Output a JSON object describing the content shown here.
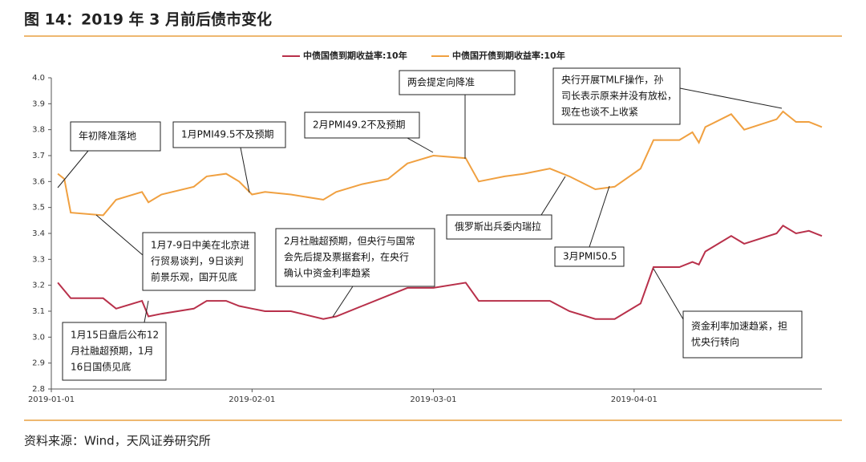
{
  "chart_data": {
    "type": "line",
    "title": "图 14：2019 年 3 月前后债市变化",
    "source": "资料来源：Wind，天风证券研究所",
    "legend": "top",
    "x": [
      "2019-01-02",
      "2019-01-03",
      "2019-01-04",
      "2019-01-09",
      "2019-01-11",
      "2019-01-15",
      "2019-01-16",
      "2019-01-18",
      "2019-01-23",
      "2019-01-25",
      "2019-01-28",
      "2019-01-30",
      "2019-02-01",
      "2019-02-03",
      "2019-02-07",
      "2019-02-12",
      "2019-02-14",
      "2019-02-18",
      "2019-02-22",
      "2019-02-25",
      "2019-03-01",
      "2019-03-06",
      "2019-03-08",
      "2019-03-12",
      "2019-03-15",
      "2019-03-19",
      "2019-03-22",
      "2019-03-26",
      "2019-03-29",
      "2019-04-02",
      "2019-04-04",
      "2019-04-08",
      "2019-04-10",
      "2019-04-11",
      "2019-04-12",
      "2019-04-16",
      "2019-04-18",
      "2019-04-23",
      "2019-04-24",
      "2019-04-26",
      "2019-04-28",
      "2019-04-30"
    ],
    "series": [
      {
        "name": "中债国债到期收益率:10年",
        "color": "#b8304a",
        "values": [
          3.21,
          3.18,
          3.15,
          3.15,
          3.11,
          3.14,
          3.08,
          3.09,
          3.11,
          3.14,
          3.14,
          3.12,
          3.11,
          3.1,
          3.1,
          3.07,
          3.08,
          3.12,
          3.16,
          3.19,
          3.19,
          3.21,
          3.14,
          3.14,
          3.14,
          3.14,
          3.1,
          3.07,
          3.07,
          3.13,
          3.27,
          3.27,
          3.29,
          3.28,
          3.33,
          3.39,
          3.36,
          3.4,
          3.43,
          3.4,
          3.41,
          3.39
        ]
      },
      {
        "name": "中债国开债到期收益率:10年",
        "color": "#f0a040",
        "values": [
          3.63,
          3.61,
          3.48,
          3.47,
          3.53,
          3.56,
          3.52,
          3.55,
          3.58,
          3.62,
          3.63,
          3.6,
          3.55,
          3.56,
          3.55,
          3.53,
          3.56,
          3.59,
          3.61,
          3.67,
          3.7,
          3.69,
          3.6,
          3.62,
          3.63,
          3.65,
          3.62,
          3.57,
          3.58,
          3.65,
          3.76,
          3.76,
          3.79,
          3.75,
          3.81,
          3.86,
          3.8,
          3.84,
          3.87,
          3.83,
          3.83,
          3.81
        ]
      }
    ],
    "xlim": [
      "2019-01-01",
      "2019-04-30"
    ],
    "xticks": [
      "2019-01-01",
      "2019-02-01",
      "2019-03-01",
      "2019-04-01"
    ],
    "ylim": [
      2.8,
      4.0
    ],
    "yticks": [
      2.8,
      2.9,
      {
        "value": 3.0,
        "label": "3.0"
      },
      3.1,
      3.2,
      3.3,
      3.4,
      3.5,
      3.6,
      3.7,
      3.8,
      3.9,
      {
        "value": 4.0,
        "label": "4.0"
      }
    ],
    "annotations": [
      {
        "text": [
          "年初降准落地"
        ]
      },
      {
        "text": [
          "1月PMI49.5不及预期"
        ]
      },
      {
        "text": [
          "2月PMI49.2不及预期"
        ]
      },
      {
        "text": [
          "两会提定向降准"
        ]
      },
      {
        "text": [
          "央行开展TMLF操作，孙",
          "司长表示原来并没有放松，",
          "现在也谈不上收紧"
        ]
      },
      {
        "text": [
          "俄罗斯出兵委内瑞拉"
        ]
      },
      {
        "text": [
          "3月PMI50.5"
        ]
      },
      {
        "text": [
          "1月7-9日中美在北京进",
          "行贸易谈判，9日谈判",
          "前景乐观，国开见底"
        ]
      },
      {
        "text": [
          "2月社融超预期，但央行与国常",
          "会先后提及票据套利，在央行",
          "确认中资金利率趋紧"
        ]
      },
      {
        "text": [
          "1月15日盘后公布12",
          "月社融超预期，1月",
          "16日国债见底"
        ]
      },
      {
        "text": [
          "资金利率加速趋紧，担",
          "忧央行转向"
        ]
      }
    ]
  }
}
